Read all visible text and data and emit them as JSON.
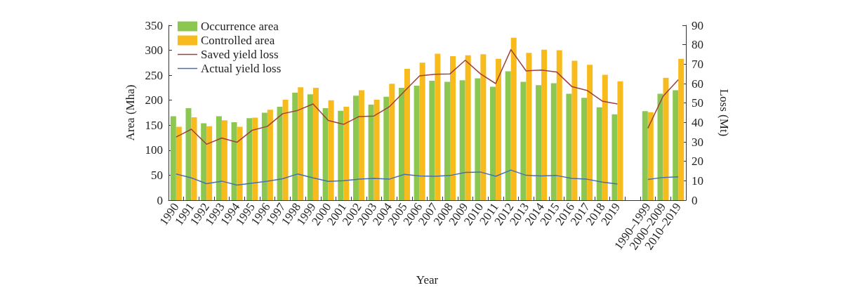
{
  "chart_data": {
    "type": "bar",
    "xlabel": "Year",
    "ylabel": "Area (Mha)",
    "y2label": "Loss (Mt)",
    "categories": [
      "1990",
      "1991",
      "1992",
      "1993",
      "1994",
      "1995",
      "1996",
      "1997",
      "1998",
      "1999",
      "2000",
      "2001",
      "2002",
      "2003",
      "2004",
      "2005",
      "2006",
      "2007",
      "2008",
      "2009",
      "2010",
      "2011",
      "2012",
      "2013",
      "2014",
      "2015",
      "2016",
      "2017",
      "2018",
      "2019",
      null,
      "1990–1999",
      "2000–2009",
      "2010–2019"
    ],
    "series": [
      {
        "name": "Occurrence area",
        "color": "#8cc751",
        "values": [
          168,
          184,
          154,
          168,
          156,
          164,
          175,
          187,
          215,
          212,
          184,
          179,
          209,
          191,
          207,
          225,
          229,
          239,
          237,
          240,
          244,
          227,
          258,
          237,
          230,
          234,
          213,
          205,
          186,
          172,
          null,
          178,
          213,
          220
        ]
      },
      {
        "name": "Controlled area",
        "color": "#f7bb1e",
        "values": [
          147,
          166,
          148,
          160,
          147,
          165,
          181,
          201,
          226,
          225,
          200,
          187,
          220,
          201,
          233,
          263,
          275,
          293,
          288,
          290,
          292,
          283,
          325,
          295,
          301,
          300,
          279,
          271,
          251,
          238,
          null,
          176,
          245,
          283
        ]
      },
      {
        "name": "Saved yield loss",
        "type": "line",
        "axis": "y2",
        "color": "#a0403a",
        "values": [
          32.5,
          36.5,
          28.8,
          32,
          29.8,
          36,
          38,
          44.5,
          46.2,
          49.5,
          41,
          39,
          43,
          43.3,
          48,
          56,
          64,
          64.8,
          65,
          72,
          65,
          60,
          77.5,
          66.5,
          67,
          66,
          58.5,
          56.5,
          51,
          49.5,
          null,
          37,
          53.5,
          62
        ]
      },
      {
        "name": "Actual yield loss",
        "type": "line",
        "axis": "y2",
        "color": "#4a6fb0",
        "values": [
          13.5,
          11.5,
          8.5,
          9.8,
          7.8,
          8.8,
          9.8,
          11,
          13.5,
          11.5,
          9.7,
          10,
          10.8,
          11.2,
          10.8,
          13.3,
          12.5,
          12.3,
          12.7,
          14.3,
          14.5,
          12.3,
          15.5,
          12.8,
          12.5,
          12.7,
          11.2,
          10.8,
          9.3,
          8.3,
          null,
          10.7,
          11.7,
          12
        ]
      }
    ],
    "ylim": [
      0,
      350
    ],
    "yticks": [
      0,
      50,
      100,
      150,
      200,
      250,
      300,
      350
    ],
    "y2lim": [
      0,
      90
    ],
    "y2ticks": [
      0,
      10,
      20,
      30,
      40,
      50,
      60,
      70,
      80,
      90
    ],
    "grid": false,
    "legend": "top left",
    "marker": "none",
    "line_style": "solid"
  }
}
